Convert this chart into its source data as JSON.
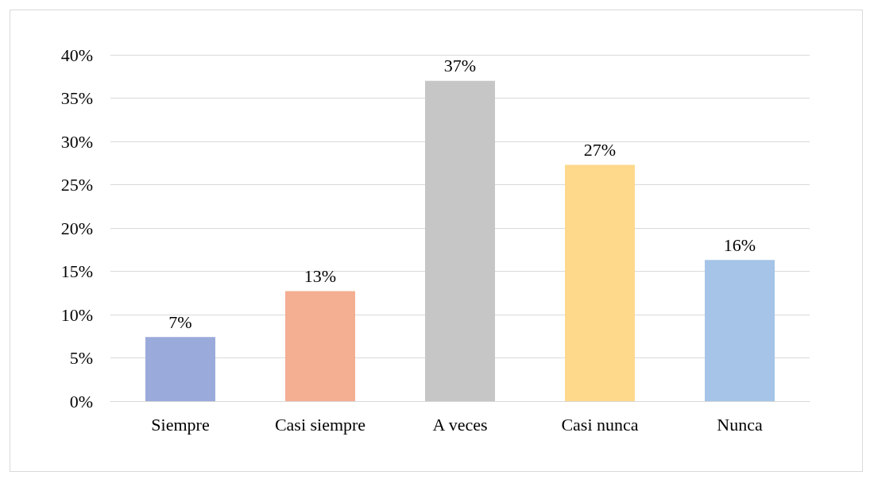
{
  "chart_data": {
    "type": "bar",
    "categories": [
      "Siempre",
      "Casi siempre",
      "A veces",
      "Casi nunca",
      "Nunca"
    ],
    "values": [
      7.4,
      12.7,
      37,
      27.3,
      16.3
    ],
    "value_labels": [
      "7%",
      "13%",
      "37%",
      "27%",
      "16%"
    ],
    "colors": [
      "#9aaadb",
      "#f4ae92",
      "#c6c6c6",
      "#fed98c",
      "#a5c4e7"
    ],
    "ylim": [
      0,
      40
    ],
    "yticks": [
      {
        "value": 0,
        "label": "0%"
      },
      {
        "value": 5,
        "label": "5%"
      },
      {
        "value": 10,
        "label": "10%"
      },
      {
        "value": 15,
        "label": "15%"
      },
      {
        "value": 20,
        "label": "20%"
      },
      {
        "value": 25,
        "label": "25%"
      },
      {
        "value": 30,
        "label": "30%"
      },
      {
        "value": 35,
        "label": "35%"
      },
      {
        "value": 40,
        "label": "40%"
      }
    ],
    "grid": "y"
  }
}
